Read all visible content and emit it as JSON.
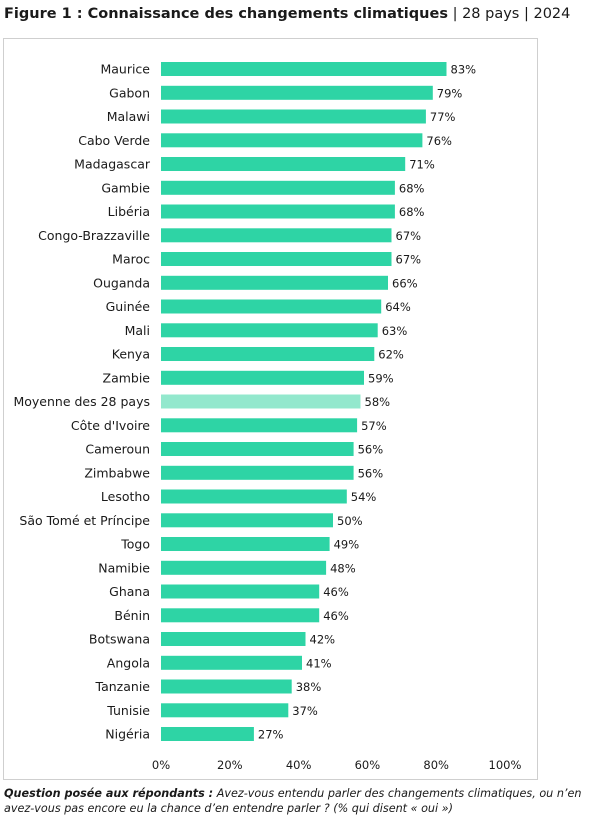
{
  "figure": {
    "label": "Figure 1 : Connaissance des changements climatiques",
    "sep1": "|",
    "countries": "28 pays",
    "sep2": "|",
    "year": "2024"
  },
  "note": {
    "question_label": "Question posée aux répondants :",
    "question_text": "Avez-vous entendu parler des changements climatiques, ou n’en avez-vous pas encore eu la chance d’en entendre parler ? (% qui disent « oui »)"
  },
  "colors": {
    "bar": "#2ed4a5",
    "highlight": "#93e8cd"
  },
  "chart_data": {
    "type": "bar",
    "orientation": "horizontal",
    "categories": [
      "Maurice",
      "Gabon",
      "Malawi",
      "Cabo Verde",
      "Madagascar",
      "Gambie",
      "Libéria",
      "Congo-Brazzaville",
      "Maroc",
      "Ouganda",
      "Guinée",
      "Mali",
      "Kenya",
      "Zambie",
      "Moyenne des 28 pays",
      "Côte d'Ivoire",
      "Cameroun",
      "Zimbabwe",
      "Lesotho",
      "São Tomé et Príncipe",
      "Togo",
      "Namibie",
      "Ghana",
      "Bénin",
      "Botswana",
      "Angola",
      "Tanzanie",
      "Tunisie",
      "Nigéria"
    ],
    "values": [
      83,
      79,
      77,
      76,
      71,
      68,
      68,
      67,
      67,
      66,
      64,
      63,
      62,
      59,
      58,
      57,
      56,
      56,
      54,
      50,
      49,
      48,
      46,
      46,
      42,
      41,
      38,
      37,
      27
    ],
    "value_labels": [
      "83%",
      "79%",
      "77%",
      "76%",
      "71%",
      "68%",
      "68%",
      "67%",
      "67%",
      "66%",
      "64%",
      "63%",
      "62%",
      "59%",
      "58%",
      "57%",
      "56%",
      "56%",
      "54%",
      "50%",
      "49%",
      "48%",
      "46%",
      "46%",
      "42%",
      "41%",
      "38%",
      "37%",
      "27%"
    ],
    "highlight_category": "Moyenne des 28 pays",
    "xlim": [
      0,
      100
    ],
    "xticks": [
      "0%",
      "20%",
      "40%",
      "60%",
      "80%",
      "100%"
    ],
    "grid": false,
    "xlabel": "",
    "ylabel": ""
  }
}
